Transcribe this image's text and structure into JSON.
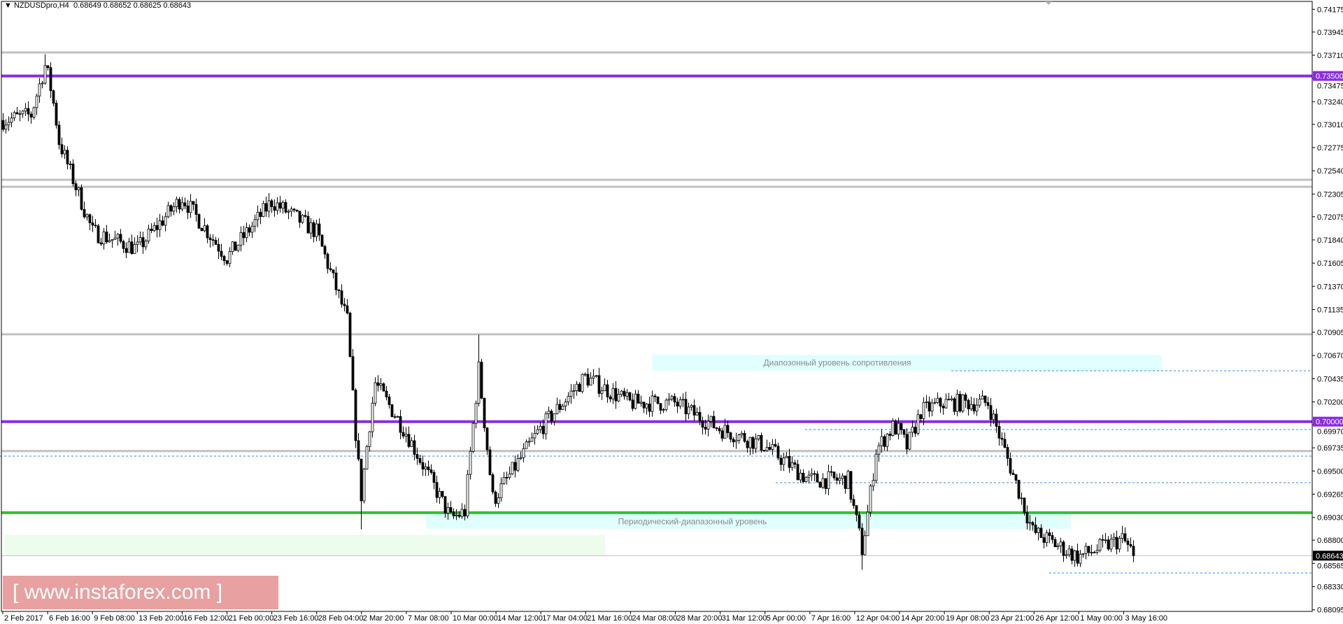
{
  "header": {
    "symbol": "NZDUSDpro,H4",
    "ohlc": "0.68649 0.68652 0.68625 0.68643",
    "menu_icon": "triangle-down-icon"
  },
  "watermark": "[ www.instaforex.com ]",
  "colors": {
    "purple_level": "#8a2be2",
    "green_level": "#32c032",
    "gray_level": "#c0c0c0",
    "dashed_level": "#1e90ff",
    "zone_fill": "#e0ffff",
    "green_zone_fill": "#eefcee",
    "bull_body": "#ffffff",
    "bear_body": "#000000"
  },
  "chart_data": {
    "type": "candlestick",
    "timeframe": "H4",
    "y_range": [
      0.68095,
      0.74175
    ],
    "grid": false,
    "price_ticks": [
      "0.74175",
      "0.73945",
      "0.73710",
      "0.73475",
      "0.73240",
      "0.73010",
      "0.72775",
      "0.72540",
      "0.72305",
      "0.72075",
      "0.71840",
      "0.71605",
      "0.71370",
      "0.71135",
      "0.70905",
      "0.70670",
      "0.70435",
      "0.70200",
      "0.69970",
      "0.69735",
      "0.69500",
      "0.69265",
      "0.69030",
      "0.68800",
      "0.68565",
      "0.68330",
      "0.68095"
    ],
    "time_labels": [
      "2 Feb 2017",
      "6 Feb 16:00",
      "9 Feb 08:00",
      "13 Feb 20:00",
      "16 Feb 12:00",
      "21 Feb 00:00",
      "23 Feb 16:00",
      "28 Feb 04:00",
      "2 Mar 20:00",
      "7 Mar 08:00",
      "10 Mar 00:00",
      "14 Mar 12:00",
      "17 Mar 04:00",
      "21 Mar 16:00",
      "24 Mar 08:00",
      "28 Mar 20:00",
      "31 Mar 12:00",
      "5 Apr 00:00",
      "7 Apr 16:00",
      "12 Apr 04:00",
      "14 Apr 20:00",
      "19 Apr 08:00",
      "23 Apr 21:00",
      "26 Apr 12:00",
      "1 May 00:00",
      "3 May 16:00"
    ],
    "approx_price_at_labels": [
      0.7305,
      0.7314,
      0.7192,
      0.7175,
      0.7227,
      0.7166,
      0.7223,
      0.7192,
      0.7062,
      0.6989,
      0.6902,
      0.6924,
      0.6993,
      0.7045,
      0.7019,
      0.7019,
      0.6993,
      0.6976,
      0.6941,
      0.6941,
      0.7002,
      0.7019,
      0.7019,
      0.6889,
      0.6863,
      0.6881
    ],
    "last_close": 0.68643,
    "levels": [
      {
        "price": 0.73738,
        "style": "gray"
      },
      {
        "price": 0.735,
        "style": "purple",
        "label": "0.73500"
      },
      {
        "price": 0.72449,
        "style": "gray"
      },
      {
        "price": 0.72378,
        "style": "gray"
      },
      {
        "price": 0.70884,
        "style": "gray"
      },
      {
        "price": 0.7,
        "style": "purple",
        "label": "0.70000"
      },
      {
        "price": 0.69702,
        "style": "gray"
      },
      {
        "price": 0.69078,
        "style": "green"
      },
      {
        "price": 0.68643,
        "style": "current",
        "label": "0.68643"
      },
      {
        "price": 0.70515,
        "style": "dashed"
      },
      {
        "price": 0.6992,
        "style": "dashed"
      },
      {
        "price": 0.69651,
        "style": "dashed"
      },
      {
        "price": 0.69382,
        "style": "dashed"
      },
      {
        "price": 0.68468,
        "style": "dashed"
      }
    ],
    "zones": [
      {
        "top": 0.70675,
        "bottom": 0.70515,
        "label": "Диапозонный уровень сопротивления",
        "fill": "cyan"
      },
      {
        "top": 0.69064,
        "bottom": 0.68915,
        "label": "Периодический-диапазонный уровень",
        "fill": "cyan"
      },
      {
        "top": 0.68851,
        "bottom": 0.68645,
        "label": "",
        "fill": "green"
      }
    ]
  }
}
